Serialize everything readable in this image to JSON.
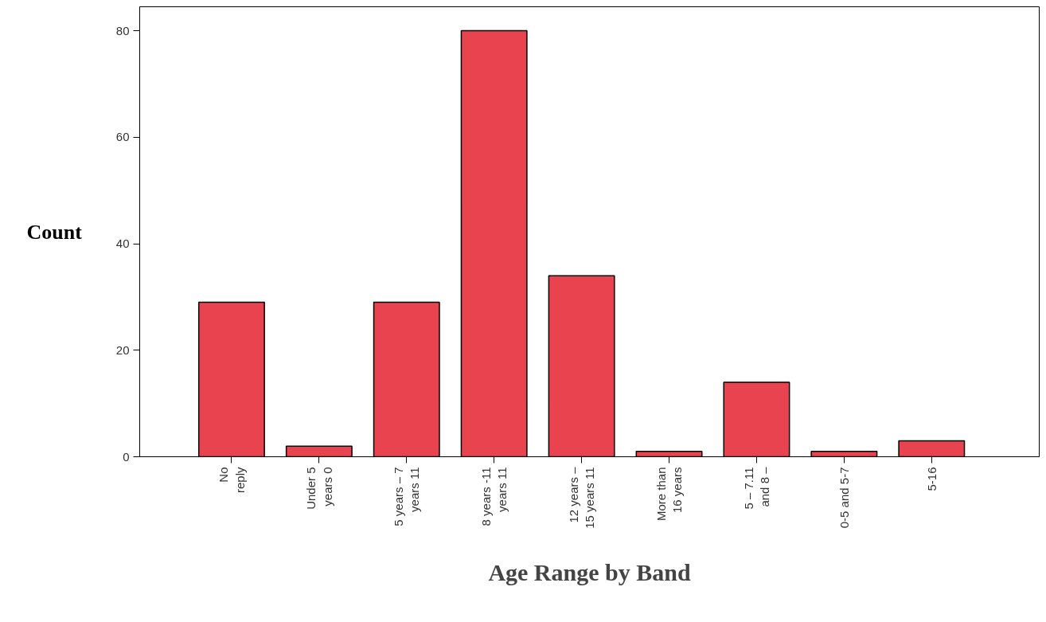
{
  "chart_data": {
    "type": "bar",
    "xlabel": "Age Range by Band",
    "ylabel": "Count",
    "categories": [
      "No\nreply",
      "Under 5\nyears 0",
      "5 years – 7\nyears 11",
      "8 years -11\nyears 11",
      "12 years –\n15 years 11",
      "More than\n16 years",
      "5 – 7.11\nand 8 –",
      "0-5 and 5-7",
      "5-16"
    ],
    "values": [
      29,
      2,
      29,
      80,
      34,
      1,
      14,
      1,
      3
    ],
    "color": "#e8434f",
    "ylim": [
      0,
      84.5
    ],
    "yticks": [
      0,
      20,
      40,
      60,
      80
    ],
    "grid": false
  }
}
